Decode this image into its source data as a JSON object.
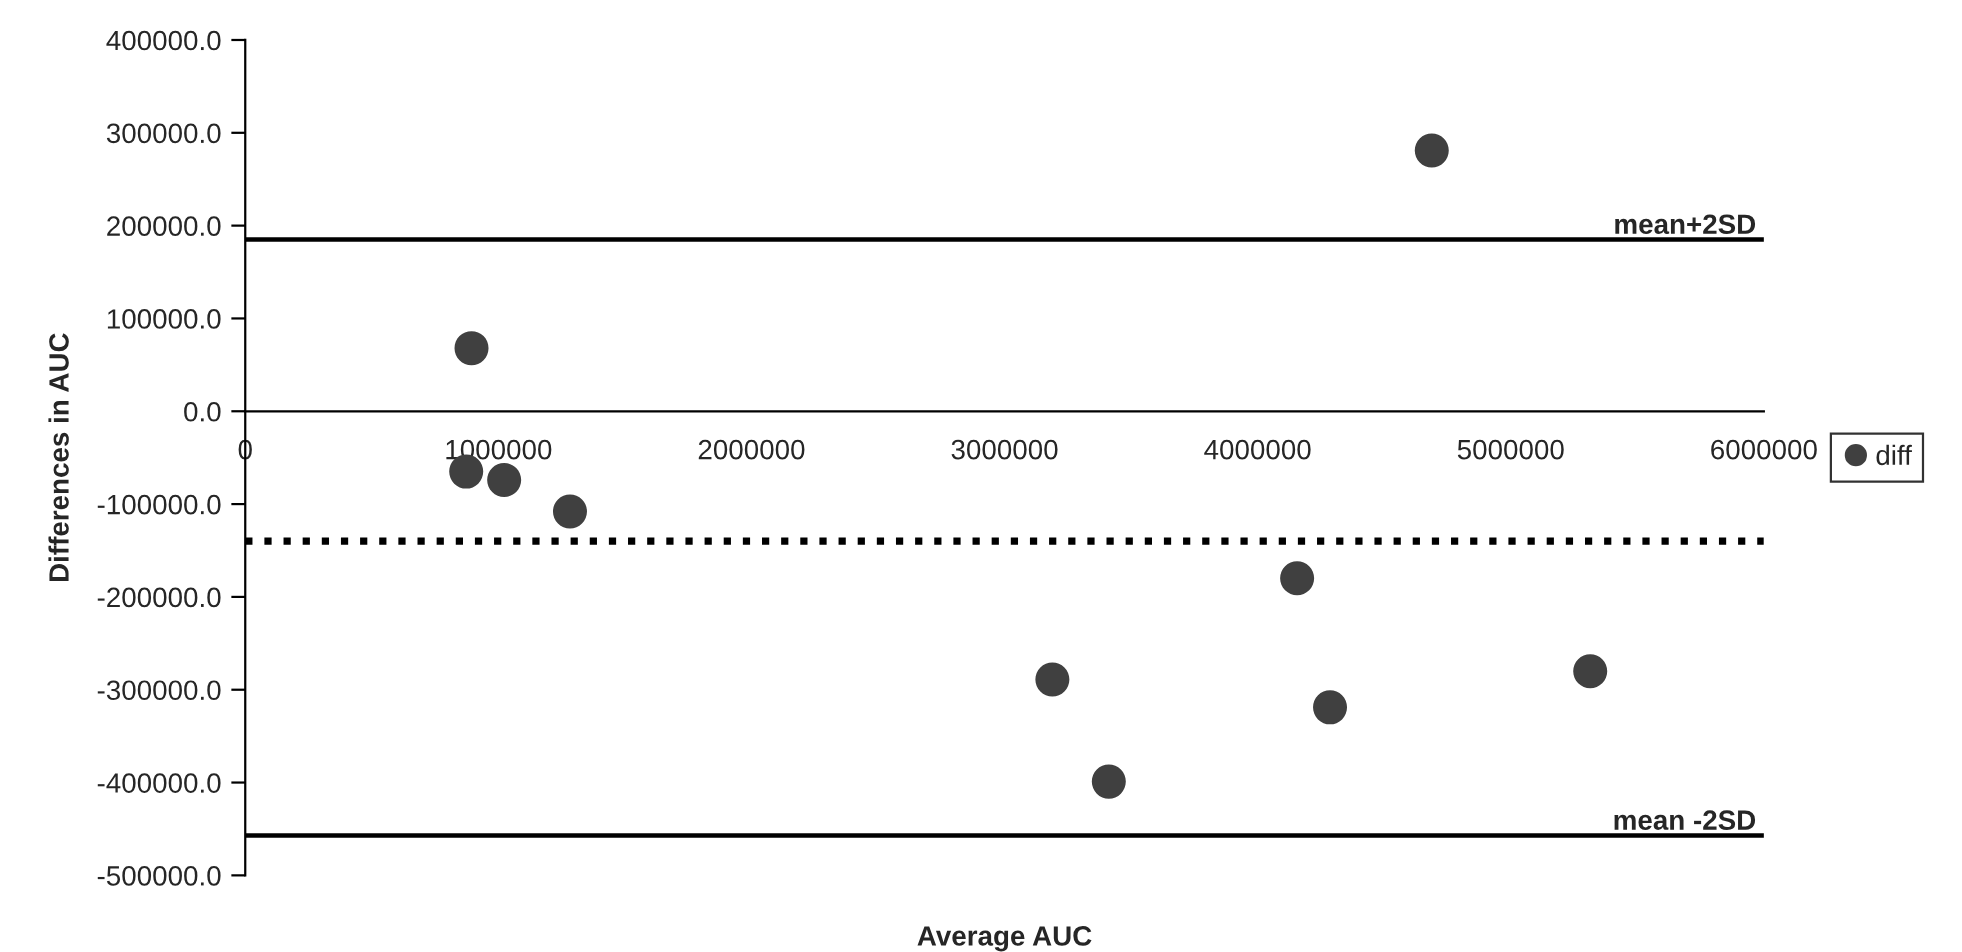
{
  "chart_data": {
    "type": "scatter",
    "xlabel": "Average AUC",
    "ylabel": "Differences in AUC",
    "series": [
      {
        "name": "diff",
        "color": "#404040",
        "x": [
          894000,
          873000,
          1023000,
          1283000,
          4688000,
          4156000,
          3189000,
          4286000,
          5314000,
          3412000
        ],
        "values": [
          68000,
          -65000,
          -74000,
          -108000,
          281000,
          -180000,
          -289000,
          -319000,
          -280000,
          -399000
        ]
      }
    ],
    "xlim": [
      0,
      6000000
    ],
    "xticks": [
      0,
      1000000,
      2000000,
      3000000,
      4000000,
      5000000,
      6000000
    ],
    "ylim": [
      -500000,
      400000
    ],
    "yticks": [
      {
        "value": -500000,
        "label": "-500000.0"
      },
      {
        "value": -400000,
        "label": "-400000.0"
      },
      {
        "value": -300000,
        "label": "-300000.0"
      },
      {
        "value": -200000,
        "label": "-200000.0"
      },
      {
        "value": -100000,
        "label": "-100000.0"
      },
      {
        "value": 0,
        "label": "0.0"
      },
      {
        "value": 100000,
        "label": "100000.0"
      },
      {
        "value": 200000,
        "label": "200000.0"
      },
      {
        "value": 300000,
        "label": "300000.0"
      },
      {
        "value": 400000,
        "label": "400000.0"
      }
    ],
    "ref_lines": [
      {
        "axis": "y",
        "value": 185000,
        "label": "mean+2SD",
        "color": "#000000",
        "line_style": "solid"
      },
      {
        "axis": "y",
        "value": -140000,
        "label": null,
        "color": "#000000",
        "line_style": "dotted"
      },
      {
        "axis": "y",
        "value": -457000,
        "label": "mean -2SD",
        "color": "#000000",
        "line_style": "solid"
      }
    ],
    "marker": "circle",
    "grid": false,
    "legend": "right"
  }
}
